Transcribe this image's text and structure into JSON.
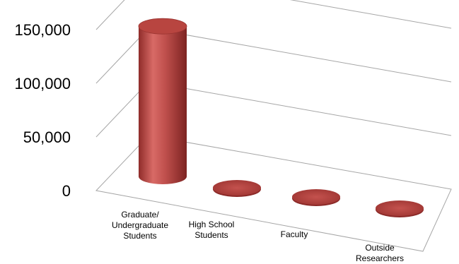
{
  "chart_data": {
    "type": "bar",
    "style": "3d-cylinder",
    "categories": [
      [
        "Graduate/",
        "Undergraduate",
        "Students"
      ],
      [
        "High School",
        "Students"
      ],
      [
        "Faculty"
      ],
      [
        "Outside",
        "Researchers"
      ]
    ],
    "values": [
      140000,
      1000,
      1000,
      1000
    ],
    "ylim": [
      0,
      150000
    ],
    "yticks": [
      "0",
      "50,000",
      "100,000",
      "150,000"
    ],
    "ytick_values": [
      0,
      50000,
      100000,
      150000
    ],
    "gridlines": true,
    "legend": false,
    "colors": {
      "bar_body": "#c0504d",
      "bar_dark": "#8c2a28",
      "bar_top": "#b84540",
      "grid": "#a6a6a6"
    }
  }
}
